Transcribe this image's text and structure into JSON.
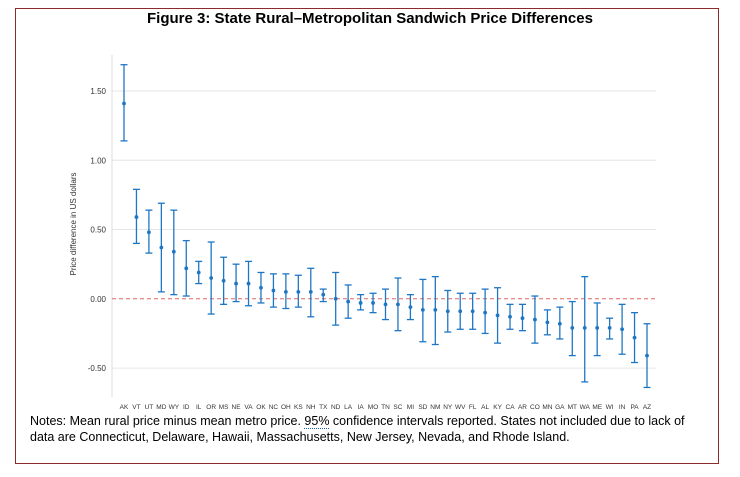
{
  "title": "Figure 3: State Rural–Metropolitan Sandwich Price Differences",
  "notes": {
    "part1": "Notes: Mean rural price minus mean metro price. ",
    "underlined": "95%",
    "part2": " confidence intervals reported. States not included due to lack of data are Connecticut, Delaware, Hawaii, Massachusetts, New Jersey, Nevada, and Rhode Island."
  },
  "colors": {
    "point": "#1f77c4",
    "zero_line": "#e06666",
    "grid": "#e6e6e6",
    "frame": "#8b2b2b"
  },
  "chart_data": {
    "type": "scatter",
    "ylabel": "Price difference in US dollars",
    "ylim": [
      -0.68,
      1.76
    ],
    "yticks": [
      "1.50",
      "1.00",
      "0.50",
      "0.00",
      "-0.50"
    ],
    "ytick_values": [
      1.5,
      1.0,
      0.5,
      0.0,
      -0.5
    ],
    "reference_line": 0.0,
    "grid": true,
    "categories": [
      "AK",
      "VT",
      "UT",
      "MD",
      "WY",
      "ID",
      "IL",
      "OR",
      "MS",
      "NE",
      "VA",
      "OK",
      "NC",
      "OH",
      "KS",
      "NH",
      "TX",
      "ND",
      "LA",
      "IA",
      "MO",
      "TN",
      "SC",
      "MI",
      "SD",
      "NM",
      "NY",
      "WV",
      "FL",
      "AL",
      "KY",
      "CA",
      "AR",
      "CO",
      "MN",
      "GA",
      "MT",
      "WA",
      "ME",
      "WI",
      "IN",
      "PA",
      "AZ"
    ],
    "estimates": [
      1.41,
      0.59,
      0.48,
      0.37,
      0.34,
      0.22,
      0.19,
      0.15,
      0.13,
      0.11,
      0.11,
      0.08,
      0.06,
      0.05,
      0.05,
      0.05,
      0.03,
      0.0,
      -0.02,
      -0.03,
      -0.03,
      -0.04,
      -0.04,
      -0.06,
      -0.08,
      -0.08,
      -0.09,
      -0.09,
      -0.09,
      -0.1,
      -0.12,
      -0.13,
      -0.14,
      -0.15,
      -0.17,
      -0.18,
      -0.21,
      -0.21,
      -0.21,
      -0.21,
      -0.22,
      -0.28,
      -0.41
    ],
    "ci_lower": [
      1.14,
      0.4,
      0.33,
      0.05,
      0.03,
      0.02,
      0.11,
      -0.11,
      -0.04,
      -0.02,
      -0.05,
      -0.03,
      -0.06,
      -0.07,
      -0.06,
      -0.13,
      -0.02,
      -0.19,
      -0.14,
      -0.08,
      -0.1,
      -0.15,
      -0.23,
      -0.15,
      -0.31,
      -0.33,
      -0.24,
      -0.22,
      -0.22,
      -0.25,
      -0.32,
      -0.22,
      -0.23,
      -0.32,
      -0.26,
      -0.29,
      -0.41,
      -0.6,
      -0.41,
      -0.29,
      -0.4,
      -0.46,
      -0.64
    ],
    "ci_upper": [
      1.69,
      0.79,
      0.64,
      0.69,
      0.64,
      0.42,
      0.27,
      0.41,
      0.3,
      0.25,
      0.27,
      0.19,
      0.18,
      0.18,
      0.17,
      0.22,
      0.07,
      0.19,
      0.1,
      0.03,
      0.04,
      0.07,
      0.15,
      0.03,
      0.14,
      0.16,
      0.06,
      0.04,
      0.04,
      0.07,
      0.08,
      -0.04,
      -0.04,
      0.02,
      -0.08,
      -0.06,
      -0.02,
      0.16,
      -0.03,
      -0.14,
      -0.04,
      -0.1,
      -0.18
    ]
  }
}
